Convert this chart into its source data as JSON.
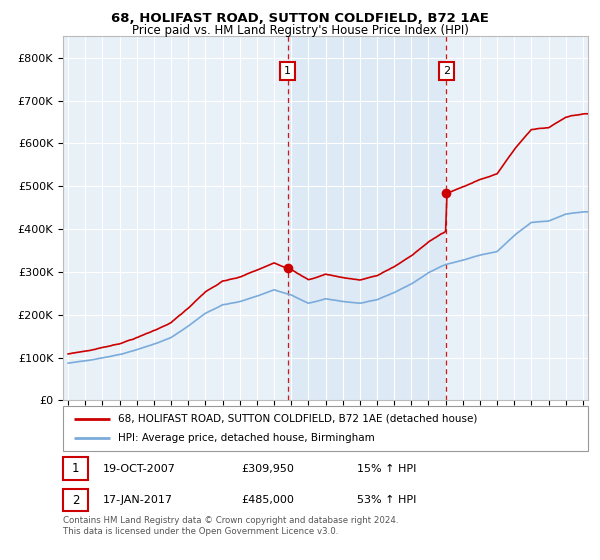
{
  "title": "68, HOLIFAST ROAD, SUTTON COLDFIELD, B72 1AE",
  "subtitle": "Price paid vs. HM Land Registry's House Price Index (HPI)",
  "ylim": [
    0,
    850000
  ],
  "yticks": [
    0,
    100000,
    200000,
    300000,
    400000,
    500000,
    600000,
    700000,
    800000
  ],
  "ytick_labels": [
    "£0",
    "£100K",
    "£200K",
    "£300K",
    "£400K",
    "£500K",
    "£600K",
    "£700K",
    "£800K"
  ],
  "hpi_color": "#7aabdb",
  "price_color": "#cc0000",
  "shade_color": "#dce8f5",
  "sale1_date": 2007.8,
  "sale1_price": 309950,
  "sale1_date_str": "19-OCT-2007",
  "sale1_price_str": "£309,950",
  "sale1_hpi_str": "15% ↑ HPI",
  "sale2_date": 2017.05,
  "sale2_price": 485000,
  "sale2_date_str": "17-JAN-2017",
  "sale2_price_str": "£485,000",
  "sale2_hpi_str": "53% ↑ HPI",
  "legend_line1": "68, HOLIFAST ROAD, SUTTON COLDFIELD, B72 1AE (detached house)",
  "legend_line2": "HPI: Average price, detached house, Birmingham",
  "footnote": "Contains HM Land Registry data © Crown copyright and database right 2024.\nThis data is licensed under the Open Government Licence v3.0.",
  "background_color": "#e8f0f8",
  "xlim_left": 1994.7,
  "xlim_right": 2025.3
}
